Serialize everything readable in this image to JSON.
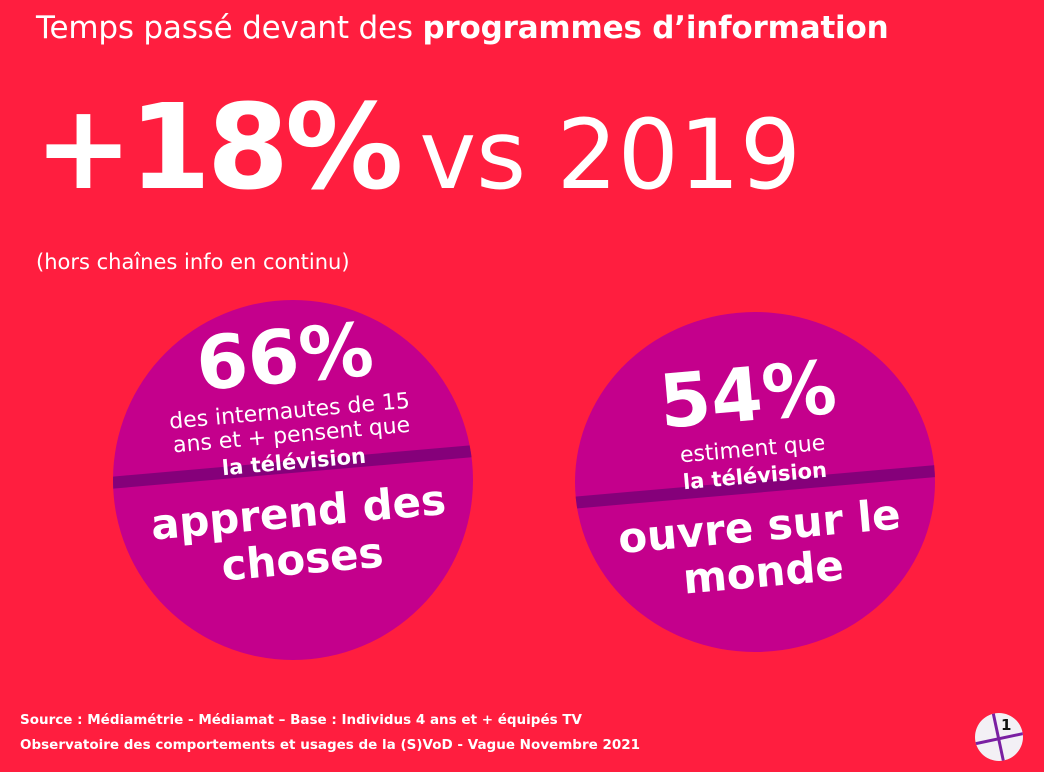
{
  "header": {
    "title_regular": "Temps passé devant des ",
    "title_bold": "programmes d’information"
  },
  "headline": {
    "value": "+18%",
    "comparison": "vs 2019",
    "note": "(hors chaînes info en continu)"
  },
  "circles": [
    {
      "value": "66%",
      "desc_line1": "des internautes de 15",
      "desc_line2": "ans et + pensent que",
      "subject": "la télévision",
      "punch_line1": "apprend des",
      "punch_line2": "choses"
    },
    {
      "value": "54%",
      "desc_line1": "estiment que",
      "subject": "la télévision",
      "punch_line1": "ouvre sur le",
      "punch_line2": "monde"
    }
  ],
  "footer": {
    "source_line1": "Source : Médiamétrie - Médiamat – Base : Individus 4 ans et + équipés TV",
    "source_line2": "Observatoire des comportements et usages de la (S)VoD - Vague Novembre 2021"
  },
  "logo": {
    "label": "1",
    "icon": "tf1-logo-icon"
  },
  "colors": {
    "background": "#ff1e3f",
    "circle": "#c4008c",
    "band": "#85007a"
  }
}
